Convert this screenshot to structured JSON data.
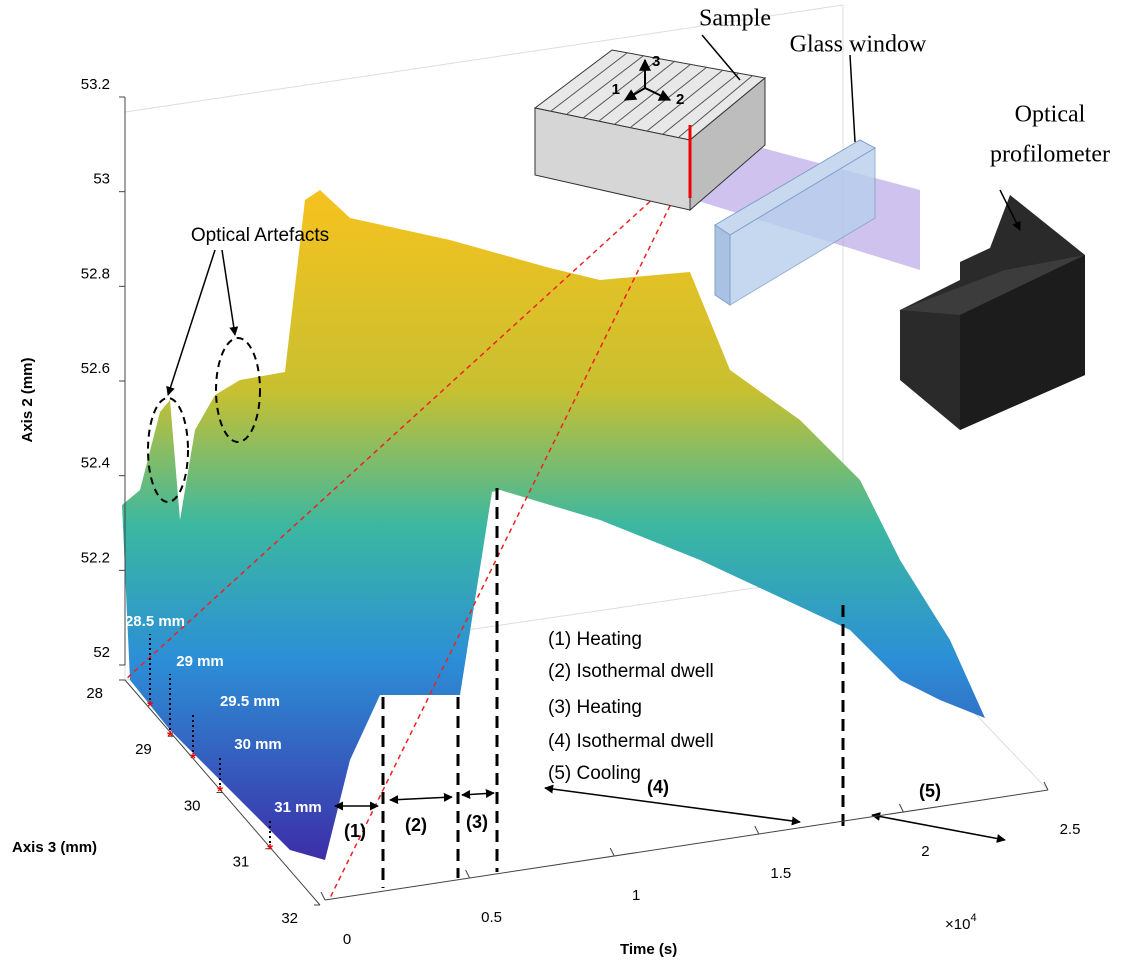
{
  "chart_data": {
    "type": "surface",
    "xlabel": "Time (s)",
    "ylabel": "Axis 3 (mm)",
    "zlabel": "Axis 2 (mm)",
    "xlim": [
      0,
      2.5
    ],
    "xticks": [
      0,
      0.5,
      1,
      1.5,
      2,
      2.5
    ],
    "x_multiplier": {
      "base": "×10",
      "exponent": "4"
    },
    "ylim": [
      28,
      32
    ],
    "yticks": [
      28,
      29,
      30,
      31,
      32
    ],
    "zlim": [
      52,
      53.2
    ],
    "zticks": [
      52,
      52.2,
      52.4,
      52.6,
      52.8,
      53,
      53.2
    ],
    "annotations": {
      "artefacts": "Optical Artefacts",
      "positions": [
        "28.5 mm",
        "29 mm",
        "29.5 mm",
        "30 mm",
        "31 mm"
      ],
      "phases": [
        "(1) Heating",
        "(2) Isothermal dwell",
        "(3) Heating",
        "(4) Isothermal dwell",
        "(5) Cooling"
      ],
      "phase_markers": [
        "(1)",
        "(2)",
        "(3)",
        "(4)",
        "(5)"
      ]
    },
    "diagram": {
      "sample": "Sample",
      "glass": "Glass window",
      "profilometer": [
        "Optical",
        "profilometer"
      ],
      "axes": [
        "1",
        "2",
        "3"
      ]
    }
  }
}
